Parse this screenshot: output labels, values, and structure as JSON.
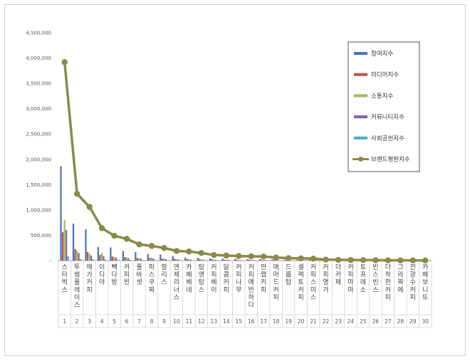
{
  "chart_data": {
    "type": "bar",
    "title": "",
    "xlabel": "",
    "ylabel": "",
    "ylim": [
      0,
      4500000
    ],
    "yticks": [
      "-",
      "500,000",
      "1,000,000",
      "1,500,000",
      "2,000,000",
      "2,500,000",
      "3,000,000",
      "3,500,000",
      "4,000,000",
      "4,500,000"
    ],
    "grid": false,
    "legend": "right",
    "categories": [
      "스타벅스",
      "투썸플레이스",
      "메가커피",
      "이디야",
      "빽다방",
      "커피빈",
      "폴바셋",
      "파스쿠찌",
      "할리스",
      "엔제리너스",
      "카페베네",
      "탐앤탐스",
      "커피베이",
      "달콤커피",
      "커피나무",
      "커피에반하다",
      "만랩커피",
      "매머드커피",
      "드롭탑",
      "셀렉토커피",
      "커피스미스",
      "커피명가",
      "더카페",
      "커피마마",
      "토프레소",
      "빈스빈스",
      "더착한커피",
      "그라찌에",
      "전광수커피",
      "카페보니또"
    ],
    "ranks": [
      "1",
      "2",
      "3",
      "4",
      "5",
      "6",
      "7",
      "8",
      "9",
      "10",
      "11",
      "12",
      "13",
      "14",
      "15",
      "16",
      "17",
      "18",
      "19",
      "20",
      "21",
      "22",
      "23",
      "24",
      "25",
      "26",
      "27",
      "28",
      "29",
      "30"
    ],
    "series": [
      {
        "name": "참여지수",
        "color": "#4472C4",
        "kind": "bar",
        "values": [
          1860000,
          730000,
          620000,
          270000,
          260000,
          190000,
          170000,
          130000,
          120000,
          90000,
          60000,
          55000,
          45000,
          40000,
          35000,
          30000,
          30000,
          25000,
          20000,
          18000,
          15000,
          12000,
          10000,
          8000,
          7000,
          6000,
          5000,
          4000,
          3000,
          2000
        ]
      },
      {
        "name": "미디어지수",
        "color": "#C0504D",
        "kind": "bar",
        "values": [
          560000,
          230000,
          170000,
          110000,
          80000,
          70000,
          50000,
          50000,
          40000,
          35000,
          30000,
          30000,
          25000,
          20000,
          20000,
          18000,
          15000,
          12000,
          10000,
          10000,
          8000,
          7000,
          6000,
          5000,
          5000,
          4000,
          3000,
          3000,
          2000,
          2000
        ]
      },
      {
        "name": "소통지수",
        "color": "#9BBB59",
        "kind": "bar",
        "values": [
          800000,
          200000,
          140000,
          150000,
          70000,
          60000,
          50000,
          60000,
          40000,
          30000,
          30000,
          25000,
          20000,
          20000,
          15000,
          15000,
          12000,
          10000,
          10000,
          8000,
          7000,
          6000,
          5000,
          4000,
          4000,
          3000,
          3000,
          2000,
          2000,
          1000
        ]
      },
      {
        "name": "커뮤니티지수",
        "color": "#8064A2",
        "kind": "bar",
        "values": [
          600000,
          150000,
          100000,
          90000,
          60000,
          50000,
          40000,
          40000,
          30000,
          25000,
          20000,
          20000,
          15000,
          15000,
          12000,
          10000,
          10000,
          8000,
          7000,
          6000,
          5000,
          4000,
          4000,
          3000,
          3000,
          2000,
          2000,
          2000,
          1000,
          1000
        ]
      },
      {
        "name": "사회공헌지수",
        "color": "#4BACC6",
        "kind": "bar",
        "values": [
          80000,
          30000,
          25000,
          20000,
          15000,
          12000,
          10000,
          10000,
          8000,
          6000,
          5000,
          5000,
          4000,
          4000,
          3000,
          3000,
          3000,
          2000,
          2000,
          2000,
          1000,
          1000,
          1000,
          1000,
          1000,
          1000,
          1000,
          1000,
          1000,
          1000
        ]
      },
      {
        "name": "브랜드평판지수",
        "color": "#8B8A47",
        "kind": "line",
        "values": [
          3920000,
          1320000,
          1060000,
          640000,
          490000,
          430000,
          320000,
          290000,
          250000,
          190000,
          180000,
          150000,
          110000,
          100000,
          90000,
          85000,
          80000,
          60000,
          50000,
          45000,
          40000,
          20000,
          15000,
          12000,
          10000,
          8000,
          6000,
          5000,
          4000,
          3000
        ]
      }
    ]
  }
}
